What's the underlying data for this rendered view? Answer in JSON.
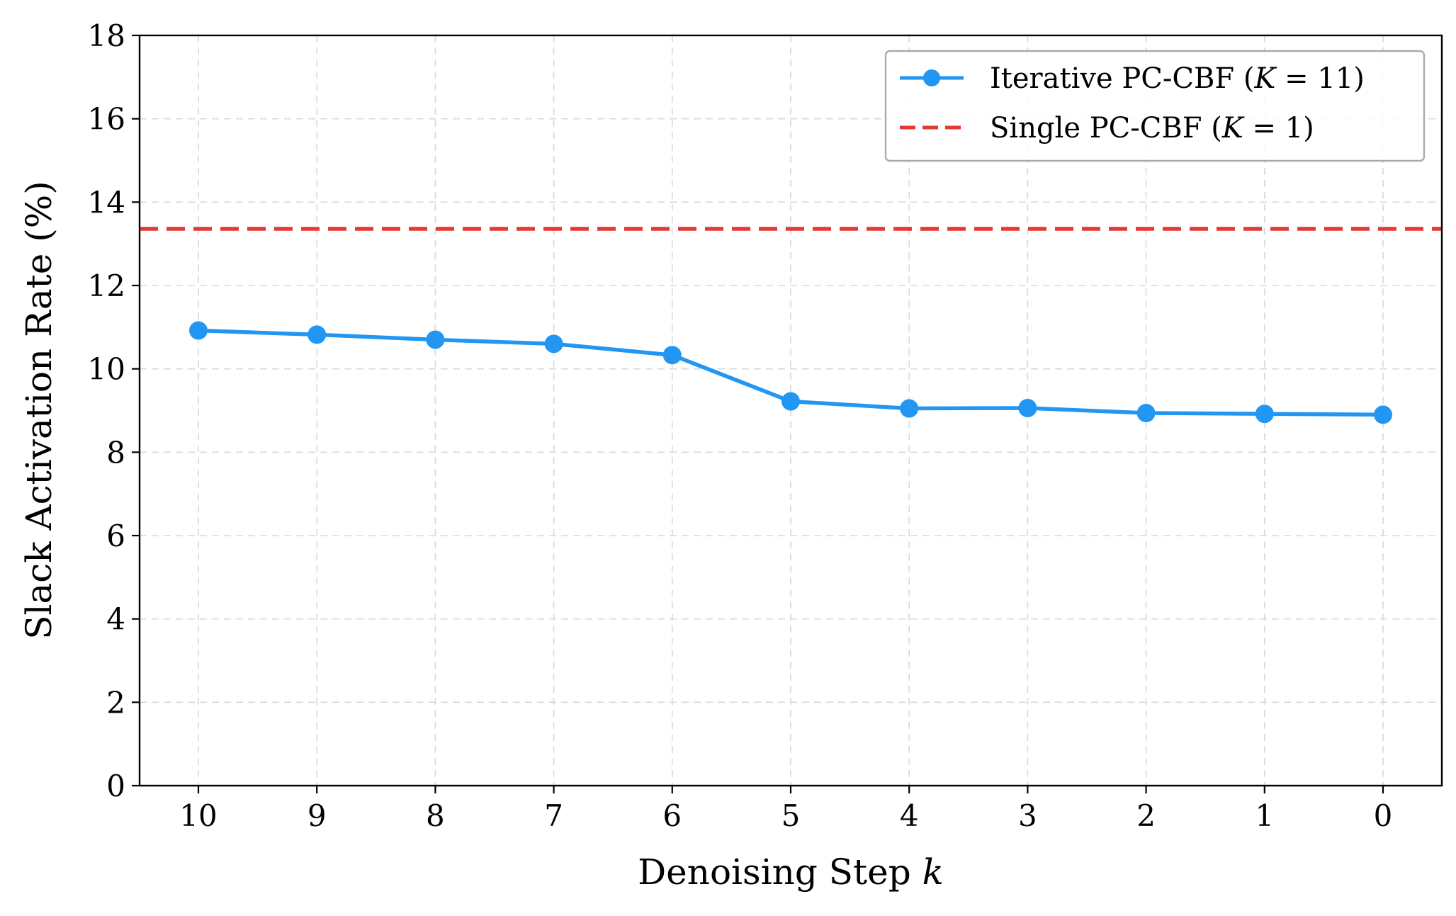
{
  "chart_data": {
    "type": "line",
    "title": "",
    "xlabel": "Denoising Step ",
    "xlabel_var": "k",
    "ylabel": "Slack Activation Rate (%)",
    "x": [
      10,
      9,
      8,
      7,
      6,
      5,
      4,
      3,
      2,
      1,
      0
    ],
    "x_tick_labels": [
      "10",
      "9",
      "8",
      "7",
      "6",
      "5",
      "4",
      "3",
      "2",
      "1",
      "0"
    ],
    "x_reversed": true,
    "ylim": [
      0,
      18
    ],
    "y_ticks": [
      0,
      2,
      4,
      6,
      8,
      10,
      12,
      14,
      16,
      18
    ],
    "y_tick_labels": [
      "0",
      "2",
      "4",
      "6",
      "8",
      "10",
      "12",
      "14",
      "16",
      "18"
    ],
    "grid": true,
    "legend_position": "top-right",
    "series": [
      {
        "name": "Iterative PC-CBF (K = 11)",
        "name_text": "Iterative PC-CBF (",
        "name_var": "K",
        "name_eq": " = 11)",
        "style": "solid-line-with-markers",
        "color": "#2196f3",
        "values": [
          10.92,
          10.82,
          10.7,
          10.6,
          10.33,
          9.22,
          9.05,
          9.06,
          8.94,
          8.92,
          8.9
        ]
      },
      {
        "name": "Single PC-CBF (K = 1)",
        "name_text": "Single PC-CBF (",
        "name_var": "K",
        "name_eq": " = 1)",
        "style": "dashed-horizontal-line",
        "color": "#e53935",
        "value": 13.36
      }
    ]
  }
}
